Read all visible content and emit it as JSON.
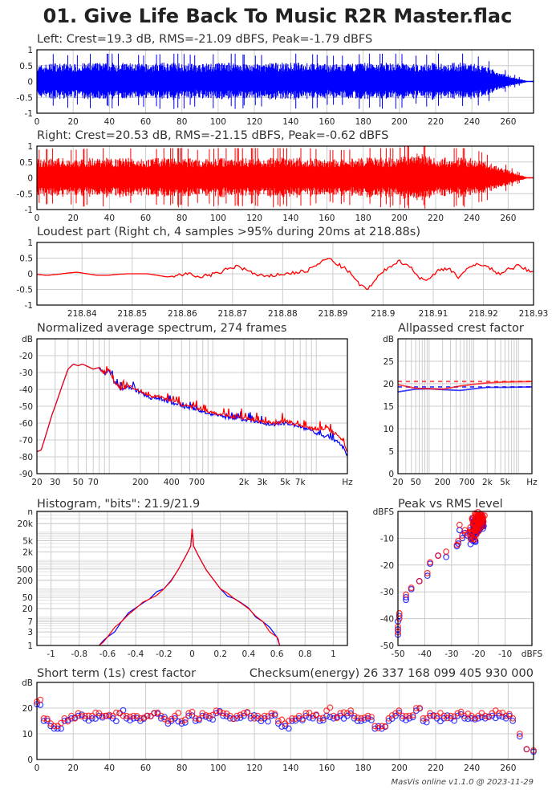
{
  "title": "01. Give Life Back To Music R2R Master.flac",
  "footer": "MasVis online v1.1.0 @ 2023-11-29",
  "colors": {
    "left": "#0000ff",
    "right": "#ff0000",
    "grid": "#cccccc"
  },
  "chart_data": [
    {
      "type": "area",
      "title": "Left: Crest=19.3 dB, RMS=-21.09 dBFS, Peak=-1.79 dBFS",
      "channel": "left",
      "xlabel": "",
      "ylabel": "",
      "xlim": [
        0,
        274
      ],
      "ylim": [
        -1,
        1
      ],
      "xticks": [
        0,
        20,
        40,
        60,
        80,
        100,
        120,
        140,
        160,
        180,
        200,
        220,
        240,
        260
      ],
      "yticks": [
        1,
        0.5,
        0,
        -0.5,
        -1
      ],
      "envelope_step_s": 10,
      "envelope": [
        0.6,
        0.7,
        0.65,
        0.7,
        0.7,
        0.7,
        0.65,
        0.7,
        0.7,
        0.65,
        0.7,
        0.7,
        0.65,
        0.7,
        0.7,
        0.7,
        0.65,
        0.65,
        0.7,
        0.7,
        0.7,
        0.65,
        0.7,
        0.7,
        0.7,
        0.5,
        0.25,
        0.03
      ]
    },
    {
      "type": "area",
      "title": "Right: Crest=20.53 dB, RMS=-21.15 dBFS, Peak=-0.62 dBFS",
      "channel": "right",
      "xlabel": "",
      "ylabel": "",
      "xlim": [
        0,
        274
      ],
      "ylim": [
        -1,
        1
      ],
      "xticks": [
        0,
        20,
        40,
        60,
        80,
        100,
        120,
        140,
        160,
        180,
        200,
        220,
        240,
        260
      ],
      "yticks": [
        1,
        0.5,
        0,
        -0.5,
        -1
      ],
      "envelope_step_s": 10,
      "envelope": [
        0.7,
        0.75,
        0.7,
        0.75,
        0.75,
        0.75,
        0.7,
        0.75,
        0.75,
        0.7,
        0.75,
        0.75,
        0.75,
        0.75,
        0.75,
        0.75,
        0.7,
        0.7,
        0.75,
        0.75,
        0.75,
        0.95,
        0.75,
        0.75,
        0.75,
        0.55,
        0.3,
        0.03
      ]
    },
    {
      "type": "line",
      "title": "Loudest part (Right ch, 4 samples >95% during 20ms at 218.88s)",
      "xlabel": "",
      "ylabel": "",
      "xlim": [
        218.831,
        218.93
      ],
      "ylim": [
        -1,
        1
      ],
      "xticks": [
        218.84,
        218.85,
        218.86,
        218.87,
        218.88,
        218.89,
        218.9,
        218.91,
        218.92,
        218.93
      ],
      "yticks": [
        1,
        0.5,
        0,
        -0.5,
        -1
      ],
      "x_start": 218.831,
      "x_step": 0.002,
      "values": [
        -0.02,
        -0.05,
        -0.02,
        0.02,
        0.05,
        0.0,
        -0.05,
        -0.05,
        -0.02,
        0.0,
        0.0,
        0.0,
        -0.05,
        -0.1,
        -0.05,
        0.0,
        -0.1,
        -0.05,
        0.0,
        0.15,
        0.25,
        0.1,
        -0.05,
        -0.1,
        -0.02,
        0.0,
        0.05,
        0.1,
        0.3,
        0.5,
        0.3,
        0.1,
        -0.3,
        -0.5,
        -0.1,
        0.2,
        0.4,
        0.3,
        -0.1,
        -0.2,
        0.1,
        0.2,
        -0.1,
        0.15,
        0.35,
        0.2,
        0.0,
        0.15,
        0.25,
        0.1,
        -0.05
      ]
    },
    {
      "type": "line",
      "title": "Normalized average spectrum, 274 frames",
      "xlabel": "Hz",
      "ylabel": "dB",
      "xscale": "log",
      "xlim": [
        20,
        20000
      ],
      "ylim": [
        -90,
        -10
      ],
      "xticks": [
        20,
        30,
        50,
        70,
        200,
        400,
        700,
        2000,
        3000,
        5000,
        7000,
        20000
      ],
      "xticklabels": [
        "20",
        "30",
        "50",
        "70",
        "200",
        "400",
        "700",
        "2k",
        "3k",
        "5k",
        "7k",
        "Hz"
      ],
      "yticks": [
        -20,
        -30,
        -40,
        -50,
        -60,
        -70,
        -80,
        -90
      ],
      "x": [
        20,
        22,
        25,
        28,
        30,
        35,
        40,
        45,
        50,
        55,
        60,
        70,
        80,
        90,
        100,
        110,
        130,
        150,
        200,
        250,
        300,
        400,
        500,
        700,
        1000,
        1500,
        2000,
        3000,
        4000,
        5000,
        7000,
        10000,
        12000,
        15000,
        18000,
        20000
      ],
      "series": [
        {
          "name": "Left",
          "values": [
            -77,
            -76,
            -65,
            -55,
            -50,
            -38,
            -28,
            -25,
            -26,
            -25,
            -26,
            -28,
            -27,
            -31,
            -28,
            -35,
            -40,
            -38,
            -42,
            -45,
            -45,
            -48,
            -50,
            -52,
            -55,
            -57,
            -58,
            -60,
            -61,
            -60,
            -62,
            -66,
            -68,
            -70,
            -74,
            -79
          ]
        },
        {
          "name": "Right",
          "values": [
            -77,
            -76,
            -65,
            -55,
            -50,
            -38,
            -28,
            -25,
            -26,
            -25,
            -26,
            -28,
            -27,
            -31,
            -28,
            -35,
            -40,
            -38,
            -41,
            -44,
            -44,
            -47,
            -49,
            -51,
            -54,
            -56,
            -57,
            -59,
            -60,
            -59,
            -61,
            -64,
            -63,
            -66,
            -70,
            -77
          ]
        }
      ]
    },
    {
      "type": "line",
      "title": "Allpassed crest factor",
      "xlabel": "Hz",
      "ylabel": "dB",
      "xscale": "log",
      "xlim": [
        20,
        20000
      ],
      "ylim": [
        0,
        30
      ],
      "xticks": [
        20,
        50,
        200,
        700,
        2000,
        5000,
        20000
      ],
      "xticklabels": [
        "20",
        "50",
        "200",
        "700",
        "2k",
        "5k",
        "Hz"
      ],
      "yticks": [
        25,
        20,
        15,
        10,
        5,
        0
      ],
      "x": [
        20,
        50,
        100,
        200,
        500,
        1000,
        2000,
        5000,
        20000
      ],
      "series": [
        {
          "name": "Left",
          "values": [
            18.2,
            18.8,
            18.9,
            18.7,
            18.5,
            18.9,
            19.2,
            19.2,
            19.3
          ],
          "reference": 19.3
        },
        {
          "name": "Right",
          "values": [
            19.8,
            19.0,
            18.9,
            18.8,
            19.5,
            19.9,
            20.2,
            20.4,
            20.5
          ],
          "reference": 20.5
        }
      ]
    },
    {
      "type": "line",
      "title": "Histogram, \"bits\": 21.9/21.9",
      "xlabel": "",
      "ylabel": "n",
      "yscale": "log",
      "xlim": [
        -1.1,
        1.1
      ],
      "ylim": [
        1,
        54000
      ],
      "xticks": [
        -1,
        -0.8,
        -0.6,
        -0.4,
        -0.2,
        0,
        0.2,
        0.4,
        0.6,
        0.8,
        1
      ],
      "yticks": [
        20000,
        5000,
        2000,
        500,
        200,
        50,
        20,
        7,
        3,
        1
      ],
      "yticklabels": [
        "20k",
        "5k",
        "2k",
        "500",
        "200",
        "50",
        "20",
        "7",
        "3",
        "1"
      ],
      "x": [
        -0.66,
        -0.6,
        -0.5,
        -0.4,
        -0.3,
        -0.2,
        -0.1,
        -0.05,
        -0.01,
        0,
        0.01,
        0.05,
        0.1,
        0.2,
        0.3,
        0.4,
        0.5,
        0.6,
        0.62
      ],
      "series": [
        {
          "name": "Left",
          "values": [
            1,
            2,
            7,
            21,
            45,
            100,
            460,
            1300,
            3200,
            13000,
            3200,
            1300,
            460,
            100,
            45,
            21,
            7,
            2,
            1
          ]
        },
        {
          "name": "Right",
          "values": [
            1,
            2,
            7,
            20,
            44,
            100,
            460,
            1300,
            3200,
            13000,
            3200,
            1300,
            460,
            100,
            44,
            20,
            7,
            2,
            1
          ]
        }
      ]
    },
    {
      "type": "scatter",
      "title": "Peak vs RMS level",
      "xlabel": "dBFS",
      "ylabel": "dBFS",
      "xlim": [
        -50,
        0
      ],
      "ylim": [
        -50,
        0
      ],
      "xticks": [
        -50,
        -40,
        -30,
        -20,
        -10
      ],
      "yticks": [
        -10,
        -20,
        -30,
        -40,
        -50
      ],
      "series": [
        {
          "name": "Left",
          "points": [
            [
              -50,
              -46
            ],
            [
              -50,
              -44
            ],
            [
              -50,
              -41
            ],
            [
              -49.5,
              -39
            ],
            [
              -47,
              -33
            ],
            [
              -47,
              -32
            ],
            [
              -45,
              -29
            ],
            [
              -42,
              -26
            ],
            [
              -39,
              -24
            ],
            [
              -38,
              -19.5
            ],
            [
              -35,
              -16.5
            ],
            [
              -32,
              -17
            ],
            [
              -28,
              -13
            ],
            [
              -27.5,
              -12
            ],
            [
              -27,
              -7
            ],
            [
              -26,
              -10
            ],
            [
              -25,
              -8
            ],
            [
              -24,
              -9
            ],
            [
              -23,
              -7
            ],
            [
              -22,
              -11
            ],
            [
              -22,
              -9
            ],
            [
              -22,
              -5
            ],
            [
              -21.5,
              -8
            ],
            [
              -21,
              -6
            ],
            [
              -21,
              -3.5
            ],
            [
              -20.5,
              -7
            ],
            [
              -20,
              -5
            ],
            [
              -20,
              -3
            ],
            [
              -19.5,
              -6
            ],
            [
              -19,
              -4
            ],
            [
              -19,
              -2
            ],
            [
              -18.5,
              -5
            ],
            [
              -18.5,
              -3
            ]
          ]
        },
        {
          "name": "Right",
          "points": [
            [
              -50,
              -45
            ],
            [
              -50,
              -43
            ],
            [
              -49.5,
              -40
            ],
            [
              -49.5,
              -38
            ],
            [
              -47,
              -31
            ],
            [
              -45,
              -28.5
            ],
            [
              -42,
              -26
            ],
            [
              -39,
              -23
            ],
            [
              -38,
              -19
            ],
            [
              -35,
              -16.5
            ],
            [
              -32,
              -15
            ],
            [
              -28,
              -12.5
            ],
            [
              -27.5,
              -11
            ],
            [
              -27,
              -5
            ],
            [
              -26,
              -9
            ],
            [
              -25,
              -7
            ],
            [
              -24,
              -8
            ],
            [
              -23,
              -6
            ],
            [
              -22,
              -10
            ],
            [
              -22,
              -8
            ],
            [
              -22,
              -4
            ],
            [
              -21.5,
              -7
            ],
            [
              -21,
              -5
            ],
            [
              -21,
              -2
            ],
            [
              -20.5,
              -6
            ],
            [
              -20,
              -4
            ],
            [
              -20,
              -1.5
            ],
            [
              -19.5,
              -5
            ],
            [
              -19,
              -3
            ],
            [
              -19,
              -1
            ],
            [
              -18.5,
              -4
            ],
            [
              -18.5,
              -2.5
            ]
          ]
        }
      ]
    },
    {
      "type": "scatter",
      "title": "Short term (1s) crest factor",
      "checksum": "Checksum(energy) 26 337 168 099 405 930 000",
      "xlabel": "",
      "ylabel": "dB",
      "xlim": [
        0,
        274
      ],
      "ylim": [
        0,
        30
      ],
      "xticks": [
        0,
        20,
        40,
        60,
        80,
        100,
        120,
        140,
        160,
        180,
        200,
        220,
        240,
        260
      ],
      "yticks": [
        20,
        10,
        0
      ],
      "series": [
        {
          "name": "Left",
          "values": [
            21.5,
            15,
            13,
            12,
            15,
            16,
            17,
            16,
            16,
            17,
            17,
            16,
            18,
            16,
            16,
            15,
            17,
            18,
            16,
            14,
            16,
            14,
            17,
            15,
            17,
            16,
            18,
            17,
            16,
            16,
            17,
            16,
            16,
            16,
            17,
            14,
            13,
            15,
            16,
            17,
            16,
            15,
            17,
            16,
            17,
            17,
            16,
            15,
            16,
            12,
            12,
            15,
            17,
            16,
            16,
            19,
            15,
            17,
            16,
            16,
            16,
            17,
            16,
            16,
            16,
            16,
            17,
            17,
            16,
            15,
            9,
            4,
            3
          ]
        },
        {
          "name": "Right",
          "values": [
            22.5,
            16,
            14,
            13,
            16,
            17,
            18,
            17,
            17,
            18,
            17,
            17,
            18,
            17,
            17,
            16,
            17,
            18,
            17,
            15,
            17,
            15,
            18,
            16,
            18,
            17,
            19,
            18,
            17,
            17,
            18,
            17,
            17,
            17,
            18,
            15,
            14,
            16,
            17,
            18,
            17,
            16,
            19,
            17,
            18,
            18,
            17,
            16,
            17,
            13,
            13,
            16,
            18,
            17,
            17,
            20,
            16,
            18,
            17,
            17,
            17,
            18,
            17,
            17,
            17,
            17,
            18,
            18,
            17,
            16,
            10,
            4,
            3.5
          ]
        }
      ]
    }
  ]
}
